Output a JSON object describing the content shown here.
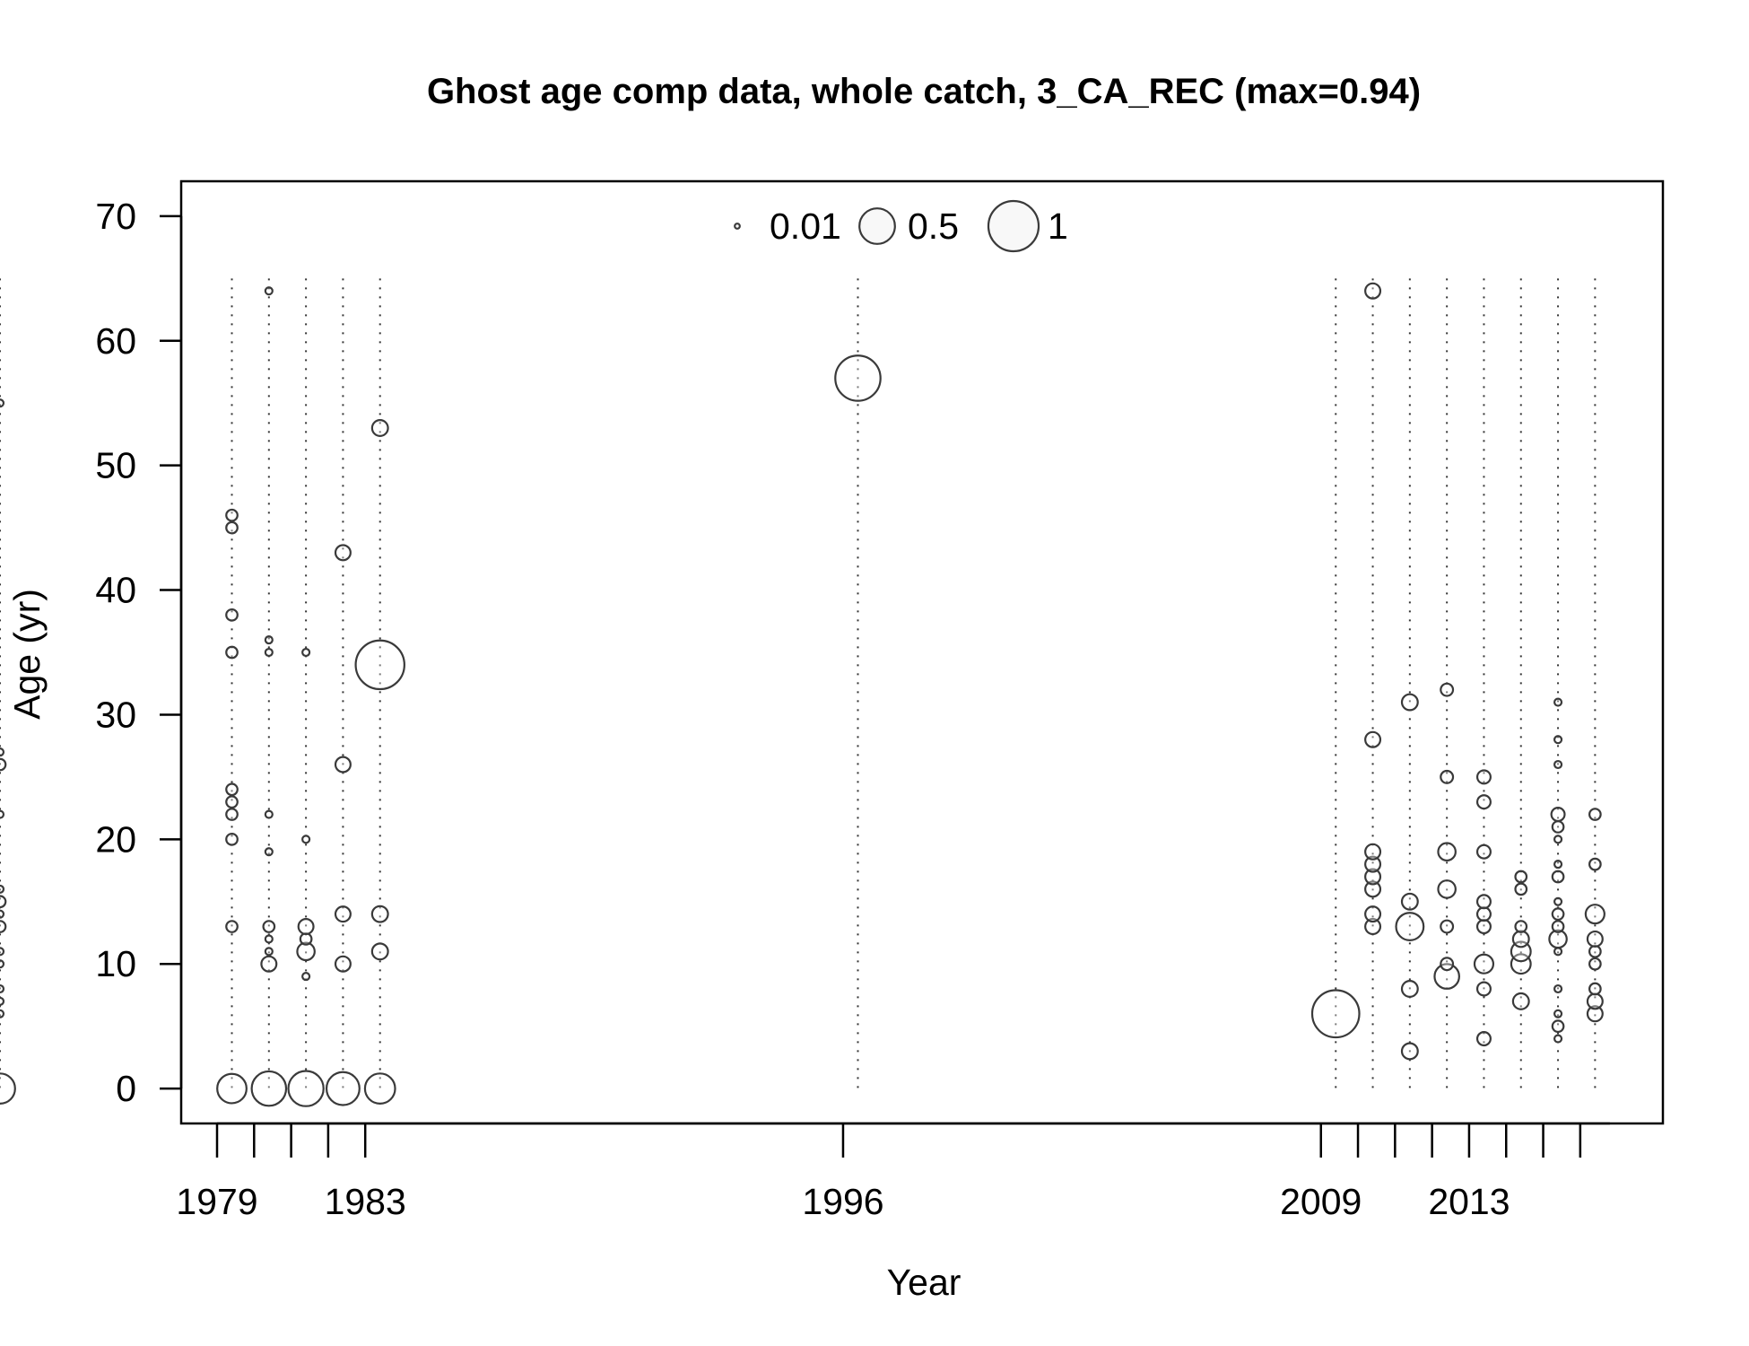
{
  "chart_data": {
    "type": "scatter",
    "title": "Ghost age comp data, whole catch, 3_CA_REC (max=0.94)",
    "xlabel": "Year",
    "ylabel": "Age (yr)",
    "ylim": [
      -2.8,
      72.8
    ],
    "y_ticks": [
      0,
      10,
      20,
      30,
      40,
      50,
      60,
      70
    ],
    "x_tick_labels": [
      "1979",
      "1983",
      "1996",
      "2009",
      "2013"
    ],
    "x_ticks": [
      {
        "year": 1979,
        "label": "1979"
      },
      {
        "year": 1980,
        "label": ""
      },
      {
        "year": 1981,
        "label": ""
      },
      {
        "year": 1982,
        "label": ""
      },
      {
        "year": 1983,
        "label": "1983"
      },
      {
        "year": 1996,
        "label": "1996"
      },
      {
        "year": 2009,
        "label": "2009"
      },
      {
        "year": 2010,
        "label": ""
      },
      {
        "year": 2011,
        "label": ""
      },
      {
        "year": 2012,
        "label": ""
      },
      {
        "year": 2013,
        "label": "2013"
      },
      {
        "year": 2014,
        "label": ""
      },
      {
        "year": 2015,
        "label": ""
      },
      {
        "year": 2016,
        "label": ""
      }
    ],
    "axis_gaps": [
      "1984–1996",
      "1996–2009"
    ],
    "bubble_scale_max": 0.94,
    "legend": {
      "placement": "top-center",
      "entries": [
        {
          "value": 0.01,
          "label": "0.01"
        },
        {
          "value": 0.5,
          "label": "0.5"
        },
        {
          "value": 1,
          "label": "1"
        }
      ]
    },
    "grid": false,
    "series": [
      {
        "year": 1979,
        "points": [
          {
            "age": 0,
            "p": 0.34
          },
          {
            "age": 13,
            "p": 0.05
          },
          {
            "age": 20,
            "p": 0.05
          },
          {
            "age": 22,
            "p": 0.05
          },
          {
            "age": 23,
            "p": 0.05
          },
          {
            "age": 24,
            "p": 0.05
          },
          {
            "age": 35,
            "p": 0.05
          },
          {
            "age": 38,
            "p": 0.05
          },
          {
            "age": 45,
            "p": 0.05
          },
          {
            "age": 46,
            "p": 0.05
          }
        ]
      },
      {
        "year": 1980,
        "points": [
          {
            "age": 0,
            "p": 0.47
          },
          {
            "age": 10,
            "p": 0.09
          },
          {
            "age": 11,
            "p": 0.02
          },
          {
            "age": 12,
            "p": 0.02
          },
          {
            "age": 13,
            "p": 0.05
          },
          {
            "age": 19,
            "p": 0.02
          },
          {
            "age": 22,
            "p": 0.02
          },
          {
            "age": 35,
            "p": 0.02
          },
          {
            "age": 36,
            "p": 0.02
          },
          {
            "age": 64,
            "p": 0.02
          }
        ]
      },
      {
        "year": 1981,
        "points": [
          {
            "age": 0,
            "p": 0.49
          },
          {
            "age": 9,
            "p": 0.02
          },
          {
            "age": 11,
            "p": 0.12
          },
          {
            "age": 12,
            "p": 0.05
          },
          {
            "age": 13,
            "p": 0.09
          },
          {
            "age": 20,
            "p": 0.02
          },
          {
            "age": 35,
            "p": 0.02
          }
        ]
      },
      {
        "year": 1982,
        "points": [
          {
            "age": 0,
            "p": 0.43
          },
          {
            "age": 10,
            "p": 0.09
          },
          {
            "age": 14,
            "p": 0.09
          },
          {
            "age": 26,
            "p": 0.09
          },
          {
            "age": 43,
            "p": 0.09
          }
        ]
      },
      {
        "year": 1983,
        "points": [
          {
            "age": 0,
            "p": 0.36
          },
          {
            "age": 11,
            "p": 0.1
          },
          {
            "age": 14,
            "p": 0.1
          },
          {
            "age": 34,
            "p": 0.94
          },
          {
            "age": 53,
            "p": 0.1
          }
        ]
      },
      {
        "year": 1984,
        "points": [
          {
            "age": 0,
            "p": 0.36
          },
          {
            "age": 6,
            "p": 0.02
          },
          {
            "age": 7,
            "p": 0.02
          },
          {
            "age": 8,
            "p": 0.02
          },
          {
            "age": 10,
            "p": 0.02
          },
          {
            "age": 11,
            "p": 0.02
          },
          {
            "age": 13,
            "p": 0.05
          },
          {
            "age": 14,
            "p": 0.02
          },
          {
            "age": 15,
            "p": 0.05
          },
          {
            "age": 16,
            "p": 0.02
          },
          {
            "age": 22,
            "p": 0.02
          },
          {
            "age": 26,
            "p": 0.05
          },
          {
            "age": 27,
            "p": 0.02
          },
          {
            "age": 55,
            "p": 0.02
          }
        ]
      },
      {
        "year": 1996,
        "points": [
          {
            "age": 57,
            "p": 0.81
          }
        ]
      },
      {
        "year": 2009,
        "points": [
          {
            "age": 6,
            "p": 0.88
          }
        ]
      },
      {
        "year": 2010,
        "points": [
          {
            "age": 13,
            "p": 0.09
          },
          {
            "age": 14,
            "p": 0.09
          },
          {
            "age": 16,
            "p": 0.09
          },
          {
            "age": 17,
            "p": 0.09
          },
          {
            "age": 18,
            "p": 0.09
          },
          {
            "age": 19,
            "p": 0.09
          },
          {
            "age": 28,
            "p": 0.09
          },
          {
            "age": 64,
            "p": 0.09
          }
        ]
      },
      {
        "year": 2011,
        "points": [
          {
            "age": 3,
            "p": 0.1
          },
          {
            "age": 8,
            "p": 0.1
          },
          {
            "age": 13,
            "p": 0.3
          },
          {
            "age": 15,
            "p": 0.1
          },
          {
            "age": 31,
            "p": 0.1
          }
        ]
      },
      {
        "year": 2012,
        "points": [
          {
            "age": 9,
            "p": 0.24
          },
          {
            "age": 10,
            "p": 0.06
          },
          {
            "age": 13,
            "p": 0.06
          },
          {
            "age": 16,
            "p": 0.12
          },
          {
            "age": 19,
            "p": 0.12
          },
          {
            "age": 25,
            "p": 0.06
          },
          {
            "age": 32,
            "p": 0.06
          }
        ]
      },
      {
        "year": 2013,
        "points": [
          {
            "age": 4,
            "p": 0.07
          },
          {
            "age": 8,
            "p": 0.07
          },
          {
            "age": 10,
            "p": 0.14
          },
          {
            "age": 13,
            "p": 0.07
          },
          {
            "age": 14,
            "p": 0.07
          },
          {
            "age": 15,
            "p": 0.07
          },
          {
            "age": 19,
            "p": 0.07
          },
          {
            "age": 23,
            "p": 0.07
          },
          {
            "age": 25,
            "p": 0.07
          }
        ]
      },
      {
        "year": 2014,
        "points": [
          {
            "age": 7,
            "p": 0.1
          },
          {
            "age": 10,
            "p": 0.15
          },
          {
            "age": 11,
            "p": 0.15
          },
          {
            "age": 12,
            "p": 0.1
          },
          {
            "age": 13,
            "p": 0.05
          },
          {
            "age": 16,
            "p": 0.05
          },
          {
            "age": 17,
            "p": 0.05
          }
        ]
      },
      {
        "year": 2015,
        "points": [
          {
            "age": 4,
            "p": 0.02
          },
          {
            "age": 5,
            "p": 0.05
          },
          {
            "age": 6,
            "p": 0.02
          },
          {
            "age": 8,
            "p": 0.02
          },
          {
            "age": 11,
            "p": 0.02
          },
          {
            "age": 12,
            "p": 0.12
          },
          {
            "age": 13,
            "p": 0.05
          },
          {
            "age": 14,
            "p": 0.05
          },
          {
            "age": 15,
            "p": 0.02
          },
          {
            "age": 17,
            "p": 0.05
          },
          {
            "age": 18,
            "p": 0.02
          },
          {
            "age": 20,
            "p": 0.02
          },
          {
            "age": 21,
            "p": 0.05
          },
          {
            "age": 22,
            "p": 0.07
          },
          {
            "age": 26,
            "p": 0.02
          },
          {
            "age": 28,
            "p": 0.02
          },
          {
            "age": 31,
            "p": 0.02
          }
        ]
      },
      {
        "year": 2016,
        "points": [
          {
            "age": 6,
            "p": 0.09
          },
          {
            "age": 7,
            "p": 0.09
          },
          {
            "age": 8,
            "p": 0.05
          },
          {
            "age": 10,
            "p": 0.05
          },
          {
            "age": 11,
            "p": 0.05
          },
          {
            "age": 12,
            "p": 0.09
          },
          {
            "age": 14,
            "p": 0.14
          },
          {
            "age": 18,
            "p": 0.05
          },
          {
            "age": 22,
            "p": 0.05
          }
        ]
      }
    ]
  }
}
